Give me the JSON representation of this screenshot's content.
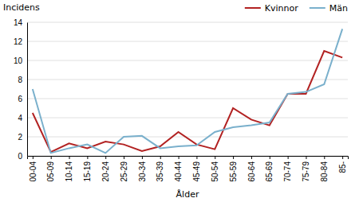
{
  "chart_data": {
    "type": "line",
    "categories": [
      "00-04",
      "05-09",
      "10-14",
      "15-19",
      "20-24",
      "25-29",
      "30-34",
      "35-39",
      "40-44",
      "45-49",
      "50-54",
      "55-59",
      "60-64",
      "65-69",
      "70-74",
      "75-79",
      "80-84",
      "85-"
    ],
    "series": [
      {
        "name": "Kvinnor",
        "color": "#b22222",
        "values": [
          4.5,
          0.4,
          1.3,
          0.8,
          1.5,
          1.2,
          0.5,
          1.0,
          2.5,
          1.2,
          0.7,
          5.0,
          3.8,
          3.2,
          6.5,
          6.5,
          11.0,
          10.3
        ]
      },
      {
        "name": "Män",
        "color": "#7ab0cc",
        "values": [
          7.0,
          0.3,
          0.8,
          1.2,
          0.3,
          2.0,
          2.1,
          0.8,
          1.0,
          1.1,
          2.5,
          3.0,
          3.2,
          3.5,
          6.5,
          6.7,
          7.5,
          13.3
        ]
      }
    ],
    "xlabel": "Ålder",
    "ylabel": "Incidens",
    "ylim": [
      0,
      14
    ],
    "yticks": [
      0,
      2,
      4,
      6,
      8,
      10,
      12,
      14
    ],
    "grid": true,
    "legend": "upper right"
  }
}
